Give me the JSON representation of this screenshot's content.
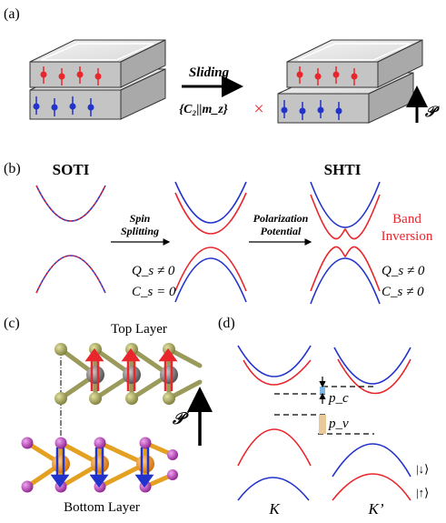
{
  "panels": {
    "a": {
      "label": "(a)",
      "arrow_label": "Sliding",
      "symmetry_label": "{C₂||m_z}",
      "cross_mark": "×",
      "polarization_symbol": "𝒫"
    },
    "b": {
      "label": "(b)",
      "left_title": "SOTI",
      "right_title": "SHTI",
      "step1_label_line1": "Spin",
      "step1_label_line2": "Splitting",
      "step2_label_line1": "Polarization",
      "step2_label_line2": "Potential",
      "band_inversion_line1": "Band",
      "band_inversion_line2": "Inversion",
      "left_eq1": "Q_s ≠ 0",
      "left_eq2": "C_s = 0",
      "right_eq1": "Q_s ≠ 0",
      "right_eq2": "C_s ≠ 0"
    },
    "c": {
      "label": "(c)",
      "top_layer": "Top Layer",
      "bottom_layer": "Bottom Layer",
      "polarization_symbol": "𝒫"
    },
    "d": {
      "label": "(d)",
      "pc_label": "p_c",
      "pv_label": "p_v",
      "k_label": "K",
      "kprime_label": "K’",
      "spin_down": "|↓⟩",
      "spin_up": "|↑⟩"
    }
  },
  "colors": {
    "spin_up": "#e8262b",
    "spin_down": "#2233cc",
    "atom_gray": "#6e6e6e",
    "atom_olive": "#a6a55a",
    "atom_orange": "#f2931b",
    "atom_magenta": "#c23cc3"
  }
}
